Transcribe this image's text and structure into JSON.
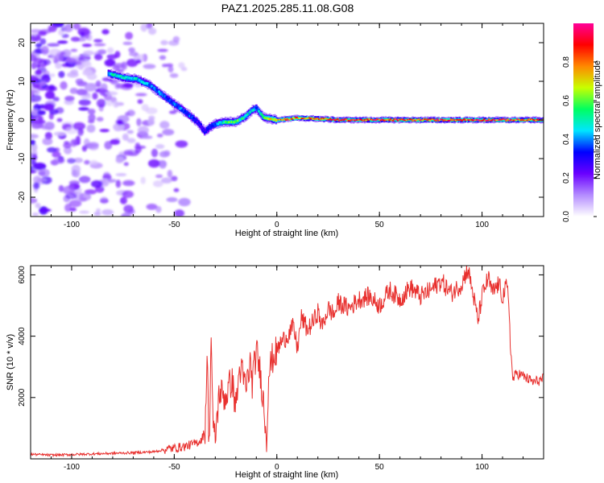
{
  "figure_title": "PAZ1.2025.285.11.08.G08",
  "chart_data": [
    {
      "type": "heatmap",
      "panel": "spectrogram",
      "xlabel": "Height of straight line (km)",
      "ylabel": "Frequency (Hz)",
      "xlim": [
        -120,
        130
      ],
      "ylim": [
        -25,
        25
      ],
      "xticks": [
        -100,
        -50,
        0,
        50,
        100
      ],
      "xtick_labels": [
        "-100",
        "-50",
        "0",
        "50",
        "100"
      ],
      "yticks": [
        -20,
        -10,
        0,
        10,
        20
      ],
      "ytick_labels": [
        "-20",
        "-10",
        "0",
        "10",
        "20"
      ],
      "ridge": {
        "x": [
          -82,
          -75,
          -68,
          -62,
          -57,
          -52,
          -47,
          -42,
          -38,
          -35,
          -33,
          -30,
          -25,
          -20,
          -15,
          -12,
          -10,
          -7,
          -5,
          0,
          5,
          10,
          20,
          30,
          40,
          50,
          60,
          70,
          80,
          90,
          100,
          110,
          120,
          130
        ],
        "y": [
          12,
          11,
          10.5,
          9,
          7,
          5,
          3,
          1,
          -1,
          -3,
          -2,
          -1,
          -0.5,
          -0.5,
          1,
          2.5,
          3,
          1,
          0.5,
          0,
          0.2,
          0.5,
          0.3,
          0,
          0,
          0,
          0,
          0,
          0,
          0,
          0,
          0,
          0,
          0
        ],
        "amplitude": [
          0.5,
          0.55,
          0.5,
          0.45,
          0.45,
          0.4,
          0.4,
          0.4,
          0.3,
          0.3,
          0.35,
          0.45,
          0.6,
          0.65,
          0.55,
          0.5,
          0.45,
          0.6,
          0.7,
          0.8,
          0.85,
          0.85,
          0.9,
          0.95,
          0.95,
          0.95,
          0.95,
          0.95,
          0.95,
          0.9,
          0.95,
          0.95,
          0.95,
          0.95
        ]
      },
      "noise_region_km": [
        -120,
        -55
      ],
      "colorbar": {
        "label": "Normalized spectral amplitude",
        "range": [
          0,
          1
        ],
        "ticks": [
          0.0,
          0.2,
          0.4,
          0.6,
          0.8
        ],
        "tick_labels": [
          "0.0",
          "0.2",
          "0.4",
          "0.6",
          "0.8"
        ],
        "colormap": [
          "#ffffff",
          "#b48cff",
          "#6a00ff",
          "#0000ff",
          "#00e5ff",
          "#00ff60",
          "#c8ff00",
          "#ff8800",
          "#ff0000",
          "#ff0099"
        ]
      }
    },
    {
      "type": "line",
      "panel": "snr",
      "xlabel": "Height of straight line (km)",
      "ylabel": "SNR (10 * v/v)",
      "xlim": [
        -120,
        130
      ],
      "ylim": [
        0,
        6300
      ],
      "xticks": [
        -100,
        -50,
        0,
        50,
        100
      ],
      "xtick_labels": [
        "-100",
        "-50",
        "0",
        "50",
        "100"
      ],
      "yticks": [
        2000,
        4000,
        6000
      ],
      "ytick_labels": [
        "2000",
        "4000",
        "6000"
      ],
      "color": "#e8302e",
      "x": [
        -120,
        -110,
        -100,
        -90,
        -80,
        -70,
        -60,
        -55,
        -50,
        -45,
        -40,
        -37,
        -35,
        -34,
        -33,
        -32,
        -31,
        -30,
        -28,
        -25,
        -22,
        -20,
        -18,
        -15,
        -13,
        -12,
        -10,
        -8,
        -6,
        -5,
        -4,
        -2,
        0,
        2,
        5,
        8,
        10,
        12,
        15,
        18,
        20,
        22,
        25,
        28,
        30,
        35,
        40,
        45,
        50,
        55,
        60,
        65,
        70,
        75,
        80,
        85,
        90,
        93,
        95,
        98,
        100,
        103,
        105,
        108,
        110,
        112,
        113,
        114,
        115,
        117,
        120,
        125,
        130
      ],
      "y": [
        150,
        120,
        140,
        160,
        180,
        200,
        230,
        300,
        350,
        400,
        500,
        600,
        900,
        3400,
        300,
        4100,
        800,
        700,
        2200,
        2000,
        2600,
        1700,
        3000,
        2300,
        3100,
        2500,
        3500,
        2800,
        1500,
        600,
        2800,
        3300,
        3500,
        3800,
        4000,
        4300,
        3600,
        4600,
        4200,
        4500,
        4800,
        4300,
        4900,
        4700,
        5100,
        4900,
        5200,
        5300,
        5000,
        5500,
        5200,
        5600,
        5300,
        5500,
        5800,
        5400,
        5700,
        6200,
        5600,
        4500,
        5300,
        5900,
        5400,
        5700,
        5300,
        5600,
        5200,
        3500,
        2600,
        2800,
        2700,
        2500,
        2600
      ]
    }
  ]
}
